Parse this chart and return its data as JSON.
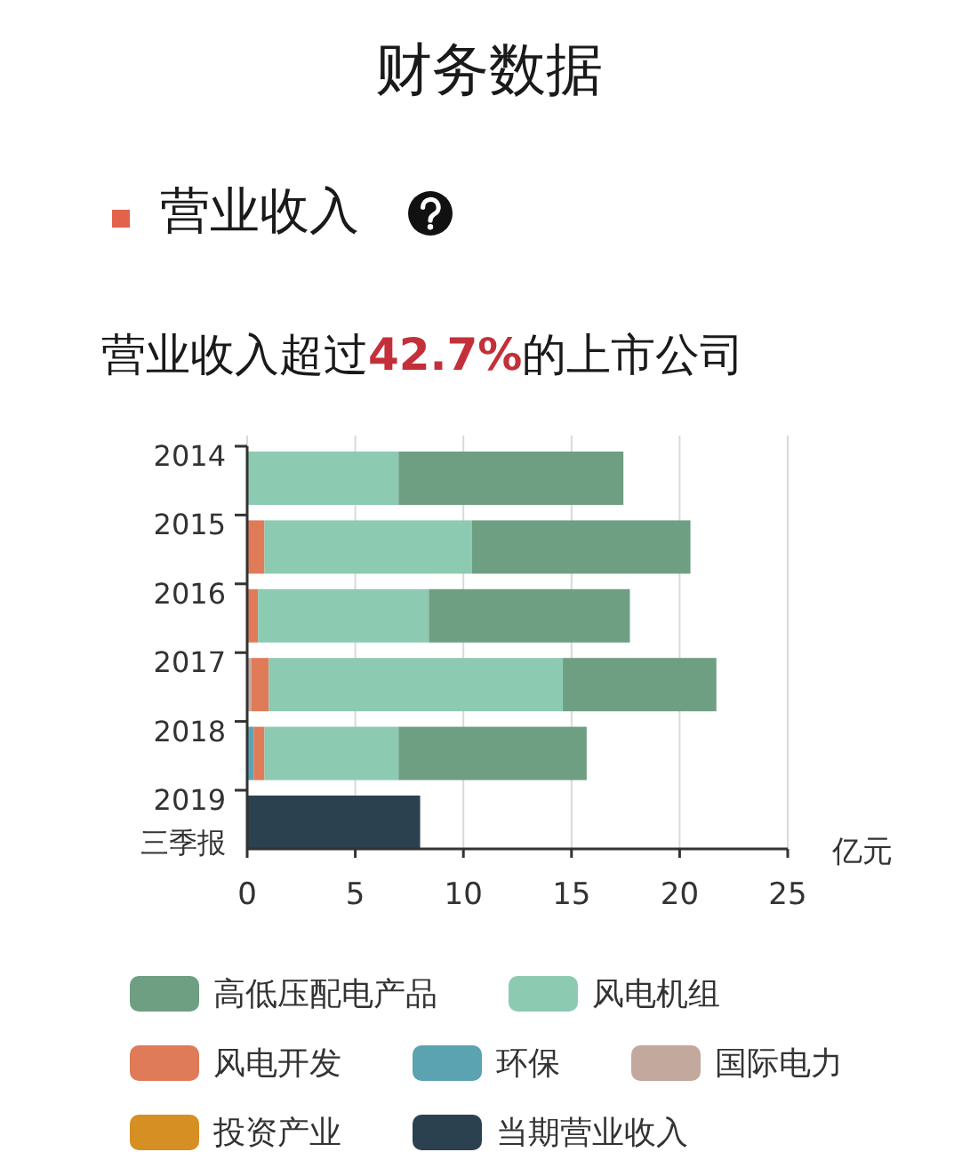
{
  "chart_data": {
    "type": "bar",
    "orientation": "horizontal",
    "stacked": true,
    "title": "财务数据",
    "subtitle": "营业收入",
    "annotations": [
      "营业收入超过42.7%的上市公司"
    ],
    "xlabel": "亿元",
    "categories": [
      "2014",
      "2015",
      "2016",
      "2017",
      "2018",
      "2019\n三季报"
    ],
    "series": [
      {
        "name": "当期营业收入",
        "color": "#2c4150",
        "values": [
          null,
          null,
          null,
          null,
          null,
          8.0
        ]
      },
      {
        "name": "投资产业",
        "color": "#d58f22",
        "values": [
          null,
          null,
          null,
          null,
          null,
          null
        ]
      },
      {
        "name": "国际电力",
        "color": "#c2a89d",
        "values": [
          null,
          null,
          null,
          0.2,
          null,
          null
        ]
      },
      {
        "name": "环保",
        "color": "#5ca3b2",
        "values": [
          null,
          null,
          null,
          null,
          0.3,
          null
        ]
      },
      {
        "name": "风电开发",
        "color": "#e07b59",
        "values": [
          null,
          0.8,
          0.5,
          0.8,
          0.5,
          null
        ]
      },
      {
        "name": "风电机组",
        "color": "#8ccab2",
        "values": [
          7.0,
          9.6,
          7.9,
          13.6,
          6.2,
          null
        ]
      },
      {
        "name": "高低压配电产品",
        "color": "#6f9f83",
        "values": [
          10.4,
          10.1,
          9.3,
          7.1,
          8.7,
          null
        ]
      }
    ],
    "xlim": [
      0,
      25
    ],
    "xticks": [
      0,
      5,
      10,
      15,
      20,
      25
    ],
    "grid": "x",
    "legend": "bottom"
  }
}
